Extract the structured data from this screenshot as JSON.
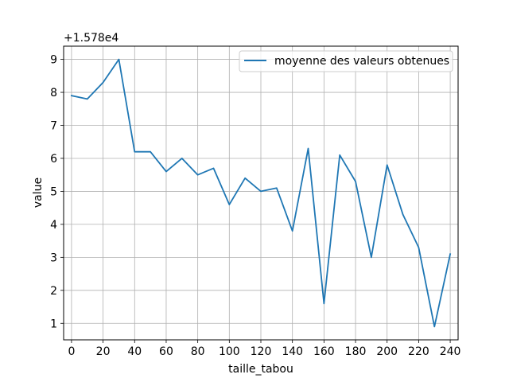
{
  "chart_data": {
    "type": "line",
    "title": "",
    "xlabel": "taille_tabou",
    "ylabel": "value",
    "offset_label": "+1.578e4",
    "xlim": [
      -5,
      245
    ],
    "ylim": [
      0.5,
      9.4
    ],
    "xticks": [
      0,
      20,
      40,
      60,
      80,
      100,
      120,
      140,
      160,
      180,
      200,
      220,
      240
    ],
    "xtick_labels": [
      "0",
      "20",
      "40",
      "60",
      "80",
      "100",
      "120",
      "140",
      "160",
      "180",
      "200",
      "220",
      "240"
    ],
    "yticks": [
      1,
      2,
      3,
      4,
      5,
      6,
      7,
      8,
      9
    ],
    "ytick_labels": [
      "1",
      "2",
      "3",
      "4",
      "5",
      "6",
      "7",
      "8",
      "9"
    ],
    "grid": true,
    "legend_position": "top-right",
    "series": [
      {
        "name": "moyenne des valeurs obtenues",
        "color": "#1f77b4",
        "x": [
          0,
          10,
          20,
          30,
          40,
          50,
          60,
          70,
          80,
          90,
          100,
          110,
          120,
          130,
          140,
          150,
          160,
          170,
          180,
          190,
          200,
          210,
          220,
          230,
          240
        ],
        "y": [
          7.9,
          7.8,
          8.3,
          9.0,
          6.2,
          6.2,
          5.6,
          6.0,
          5.5,
          5.7,
          4.6,
          5.4,
          5.0,
          5.1,
          3.8,
          6.3,
          1.6,
          6.1,
          5.3,
          3.0,
          5.8,
          4.3,
          3.3,
          0.9,
          3.1
        ]
      }
    ]
  }
}
